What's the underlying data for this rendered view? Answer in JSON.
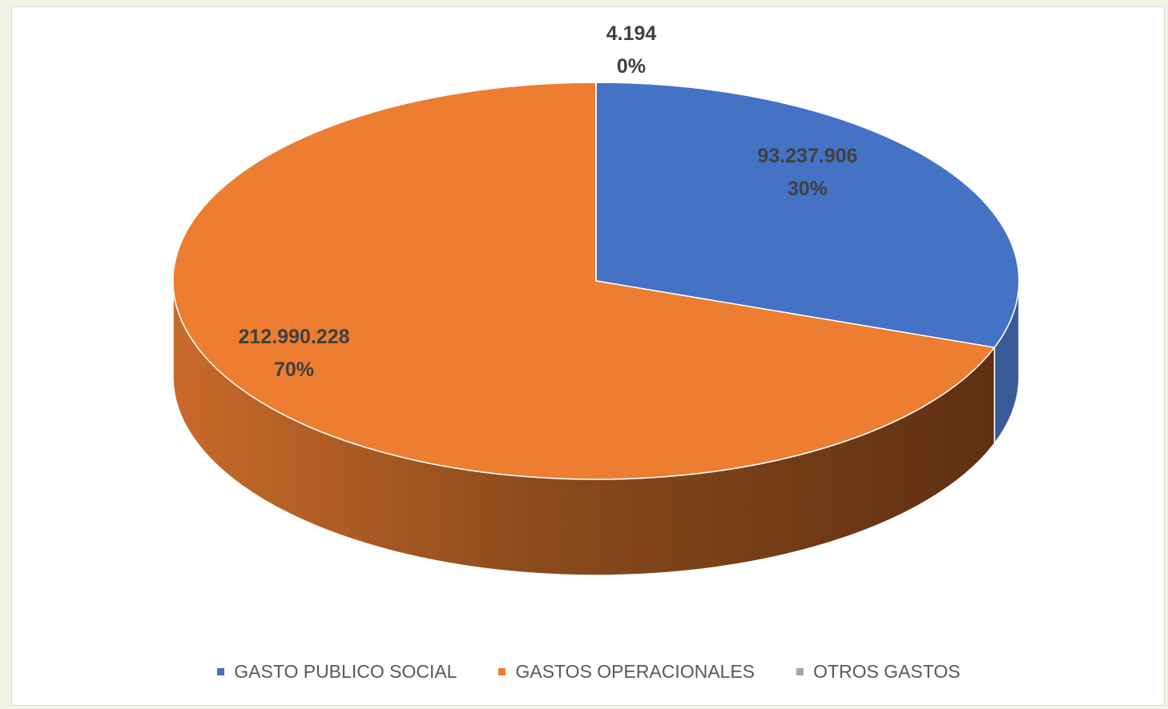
{
  "chart_data": {
    "type": "pie",
    "title": "",
    "categories": [
      "GASTO PUBLICO SOCIAL",
      "GASTOS OPERACIONALES",
      "OTROS GASTOS"
    ],
    "values": [
      93237906,
      212990228,
      4194
    ],
    "value_labels": [
      "93.237.906",
      "212.990.228",
      "4.194"
    ],
    "percent_labels": [
      "30%",
      "70%",
      "0%"
    ],
    "colors": [
      "#4472c4",
      "#ed7d31",
      "#a5a5a5"
    ],
    "style": "3d",
    "legend_position": "bottom"
  }
}
